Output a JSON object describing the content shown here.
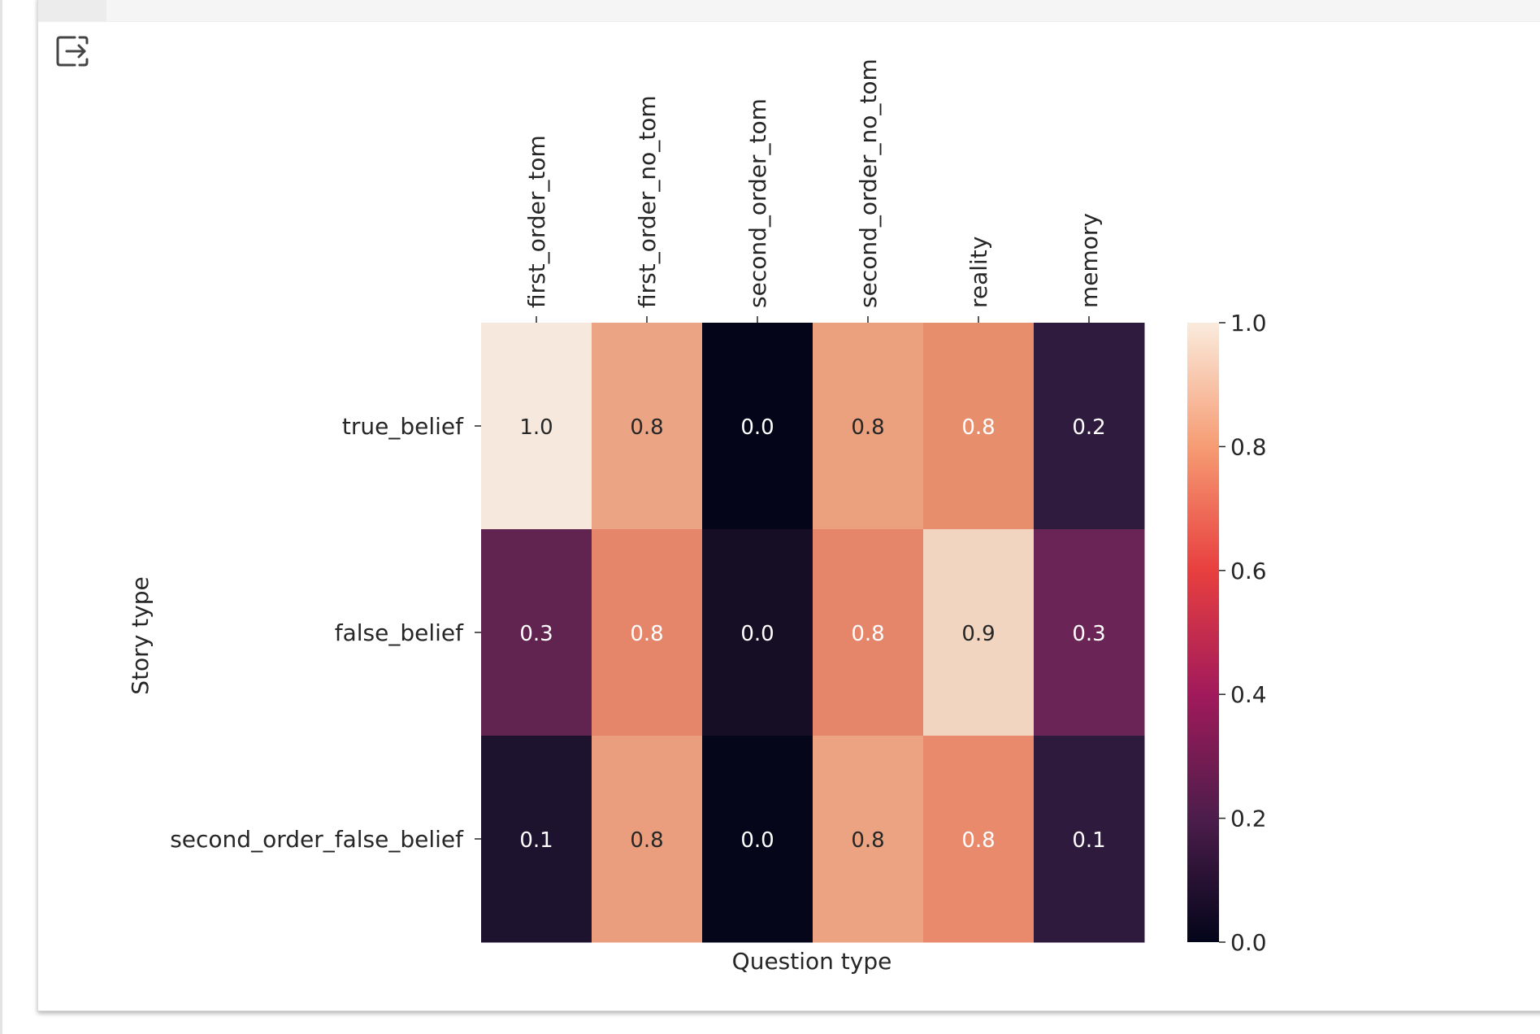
{
  "output_toolbar": {
    "icon": "output-redirect-icon"
  },
  "chart_data": {
    "type": "heatmap",
    "title": "",
    "xlabel": "Question type",
    "ylabel": "Story type",
    "x_categories": [
      "first_order_tom",
      "first_order_no_tom",
      "second_order_tom",
      "second_order_no_tom",
      "reality",
      "memory"
    ],
    "y_categories": [
      "true_belief",
      "false_belief",
      "second_order_false_belief"
    ],
    "values": [
      [
        1.0,
        0.8,
        0.0,
        0.8,
        0.8,
        0.2
      ],
      [
        0.3,
        0.8,
        0.0,
        0.8,
        0.9,
        0.3
      ],
      [
        0.1,
        0.8,
        0.0,
        0.8,
        0.8,
        0.1
      ]
    ],
    "cell_colors": [
      [
        "#f6e8dd",
        "#eba584",
        "#05051a",
        "#eba07e",
        "#e78f6d",
        "#2f1b3e"
      ],
      [
        "#612451",
        "#e5856a",
        "#150e25",
        "#e5866a",
        "#f1d5c0",
        "#6a2455"
      ],
      [
        "#1e132e",
        "#eb9e7d",
        "#06061b",
        "#eca381",
        "#e88a6b",
        "#2e1a3d"
      ]
    ],
    "cell_label_colors": [
      [
        "#262626",
        "#262626",
        "#ffffff",
        "#262626",
        "#ffffff",
        "#ffffff"
      ],
      [
        "#ffffff",
        "#ffffff",
        "#ffffff",
        "#ffffff",
        "#262626",
        "#ffffff"
      ],
      [
        "#ffffff",
        "#262626",
        "#ffffff",
        "#262626",
        "#ffffff",
        "#ffffff"
      ]
    ],
    "colorbar": {
      "range": [
        0.0,
        1.0
      ],
      "ticks": [
        "0.0",
        "0.2",
        "0.4",
        "0.6",
        "0.8",
        "1.0"
      ],
      "colormap": "rocket",
      "stops": [
        "#03051a",
        "#4c1d4b",
        "#a11a5b",
        "#e83f3f",
        "#f69c73",
        "#faebdd"
      ]
    },
    "grid": false,
    "x_tick_position": "top"
  }
}
